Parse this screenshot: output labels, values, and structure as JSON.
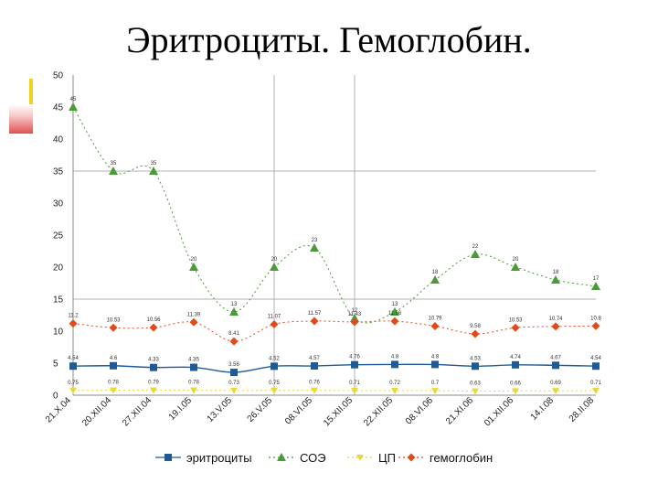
{
  "title": "Эритроциты. Гемоглобин.",
  "chart_data": {
    "type": "line",
    "title": "Эритроциты. Гемоглобин.",
    "categories": [
      "21.X.04",
      "20.XII.04",
      "27.XII.04",
      "19.I.05",
      "13.V.05",
      "26.V.05",
      "08.VI.05",
      "15.XII.05",
      "22.XII.05",
      "08.VI.06",
      "21.XI.06",
      "01.XII.06",
      "14.I.08",
      "28.II.08"
    ],
    "ylim": [
      0,
      50
    ],
    "yticks": [
      0,
      5,
      10,
      15,
      20,
      25,
      30,
      35,
      40,
      45,
      50
    ],
    "grid": "horizontal",
    "legend_position": "bottom",
    "series": [
      {
        "name": "эритроциты",
        "color": "#1f5a96",
        "marker": "square",
        "values": [
          4.54,
          4.6,
          4.33,
          4.35,
          3.56,
          4.52,
          4.57,
          4.76,
          4.8,
          4.8,
          4.53,
          4.74,
          4.67,
          4.54
        ],
        "labels": [
          "4.54",
          "4.6",
          "4.33",
          "4.35",
          "3.56",
          "4.52",
          "4.57",
          "4.76",
          "4.8",
          "4.8",
          "4.53",
          "4.74",
          "4.67",
          "4.54"
        ]
      },
      {
        "name": "СОЭ",
        "color": "#4a9a3a",
        "marker": "triangle",
        "values": [
          45,
          35,
          35,
          20,
          13,
          20,
          23,
          12,
          13,
          18,
          22,
          20,
          18,
          17
        ],
        "labels": [
          "45",
          "35",
          "35",
          "20",
          "13",
          "20",
          "23",
          "12",
          "13",
          "18",
          "22",
          "20",
          "18",
          "17"
        ]
      },
      {
        "name": "ЦП",
        "color": "#e8d83a",
        "marker": "triangle-down",
        "values": [
          0.75,
          0.78,
          0.79,
          0.78,
          0.73,
          0.75,
          0.76,
          0.71,
          0.72,
          0.7,
          0.63,
          0.66,
          0.69,
          0.71
        ],
        "labels": [
          "0.75",
          "0.78",
          "0.79",
          "0.78",
          "0.73",
          "0.75",
          "0.76",
          "0.71",
          "0.72",
          "0.7",
          "0.63",
          "0.66",
          "0.69",
          "0.71"
        ]
      },
      {
        "name": "гемоглобин",
        "color": "#e04a1a",
        "marker": "diamond",
        "values": [
          11.2,
          10.53,
          10.56,
          11.39,
          8.41,
          11.07,
          11.57,
          11.43,
          11.56,
          10.79,
          9.58,
          10.53,
          10.74,
          10.8
        ],
        "labels": [
          "11.2",
          "10.53",
          "10.56",
          "11.39",
          "8.41",
          "11.07",
          "11.57",
          "11.43",
          "11.56",
          "10.79",
          "9.58",
          "10.53",
          "10.74",
          "10.8"
        ]
      }
    ]
  }
}
